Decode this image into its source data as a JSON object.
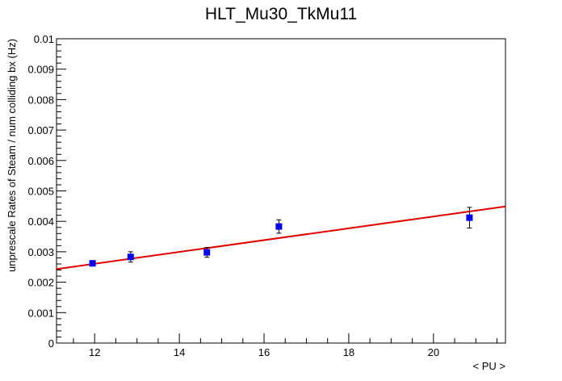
{
  "chart_data": {
    "type": "scatter",
    "title": "HLT_Mu30_TkMu11",
    "xlabel": "< PU >",
    "ylabel": "unprescale Rates of Steam / num colliding bx (Hz)",
    "xlim": [
      11.1,
      21.7
    ],
    "ylim": [
      0,
      0.01
    ],
    "x_ticks": [
      12,
      14,
      16,
      18,
      20
    ],
    "x_tick_labels": [
      "12",
      "14",
      "16",
      "18",
      "20"
    ],
    "y_ticks": [
      0,
      0.001,
      0.002,
      0.003,
      0.004,
      0.005,
      0.006,
      0.007,
      0.008,
      0.009,
      0.01
    ],
    "y_tick_labels": [
      "0",
      "0.001",
      "0.002",
      "0.003",
      "0.004",
      "0.005",
      "0.006",
      "0.007",
      "0.008",
      "0.009",
      "0.01"
    ],
    "grid": false,
    "series": [
      {
        "marker": "square",
        "color": "#0000ee",
        "points": [
          {
            "x": 11.95,
            "y": 0.00262,
            "err": 8e-05
          },
          {
            "x": 12.85,
            "y": 0.00283,
            "err": 0.00017
          },
          {
            "x": 14.65,
            "y": 0.00298,
            "err": 0.00016
          },
          {
            "x": 16.35,
            "y": 0.00383,
            "err": 0.00022
          },
          {
            "x": 20.85,
            "y": 0.00412,
            "err": 0.00034
          }
        ]
      }
    ],
    "fit": {
      "type": "linear",
      "color": "#e00000",
      "x": [
        11.1,
        21.7
      ],
      "y": [
        0.00243,
        0.00449
      ]
    }
  }
}
